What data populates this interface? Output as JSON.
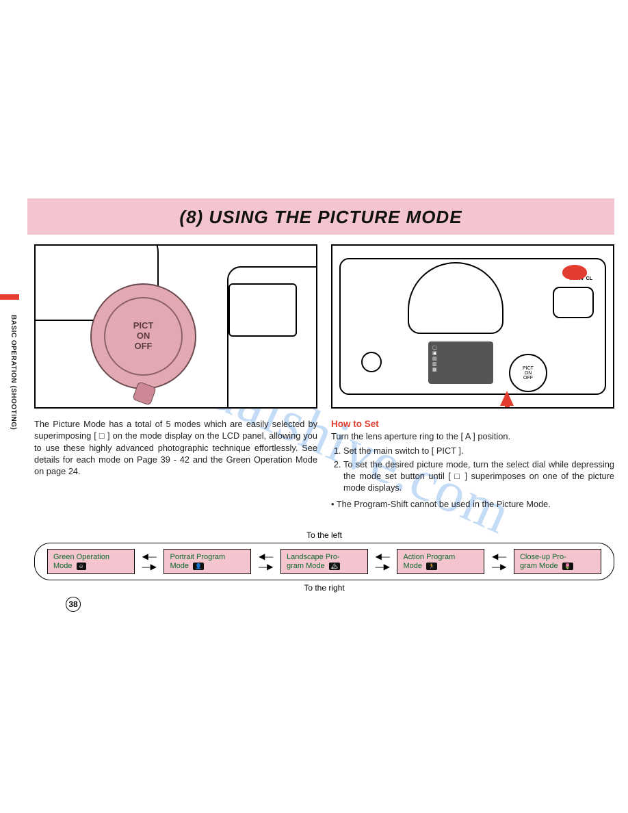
{
  "header": {
    "title": "(8)  USING THE PICTURE MODE",
    "banner_bg": "#f4c5ce",
    "title_fontsize": 26
  },
  "side_label": "BASIC OPERATION (SHOOTING)",
  "watermark": "manualshive.com",
  "left_illustration": {
    "dial_labels": [
      "PICT",
      "ON",
      "OFF"
    ],
    "dial_color": "#e3a9b2"
  },
  "right_illustration": {
    "knob_label": "TVAV",
    "cl_label": "CL",
    "small_dial_labels": [
      "PICT",
      "ON",
      "OFF"
    ],
    "arrow_color": "#e23c2f",
    "lcd_icons": [
      "▢",
      "▣",
      "▤",
      "▥",
      "▦"
    ]
  },
  "left_text": "The Picture Mode has a total of 5 modes which are easily selected by superimposing [ □ ] on the mode display on the LCD panel, allowing you to use these highly advanced photographic technique effortlessly. See details for each mode on Page 39 - 42 and the Green Operation Mode on page 24.",
  "right_text": {
    "heading": "How to Set",
    "intro": "Turn the lens aperture ring to the [ A ] position.",
    "step1": "Set the main switch to [ PICT ].",
    "step2": "To set the desired picture mode, turn the select dial while depressing the mode set button until [ □ ] superimposes on one of the picture mode displays.",
    "note": "• The Program-Shift cannot be used in the Picture Mode."
  },
  "flow": {
    "to_left": "To the left",
    "to_right": "To the right",
    "box_bg": "#f4c5ce",
    "text_color": "#0a6b2c",
    "modes": [
      {
        "line1": "Green Operation",
        "line2": "Mode",
        "icon": "☺"
      },
      {
        "line1": "Portrait Program",
        "line2": "Mode",
        "icon": "👤"
      },
      {
        "line1": "Landscape Pro-",
        "line2": "gram Mode",
        "icon": "🏔"
      },
      {
        "line1": "Action Program",
        "line2": "Mode",
        "icon": "🏃"
      },
      {
        "line1": "Close-up Pro-",
        "line2": "gram Mode",
        "icon": "🌷"
      }
    ]
  },
  "page_number": "38",
  "colors": {
    "accent_red": "#e23c2f",
    "pink": "#f4c5ce",
    "dial_pink": "#e3a9b2",
    "text_green": "#0a6b2c"
  }
}
